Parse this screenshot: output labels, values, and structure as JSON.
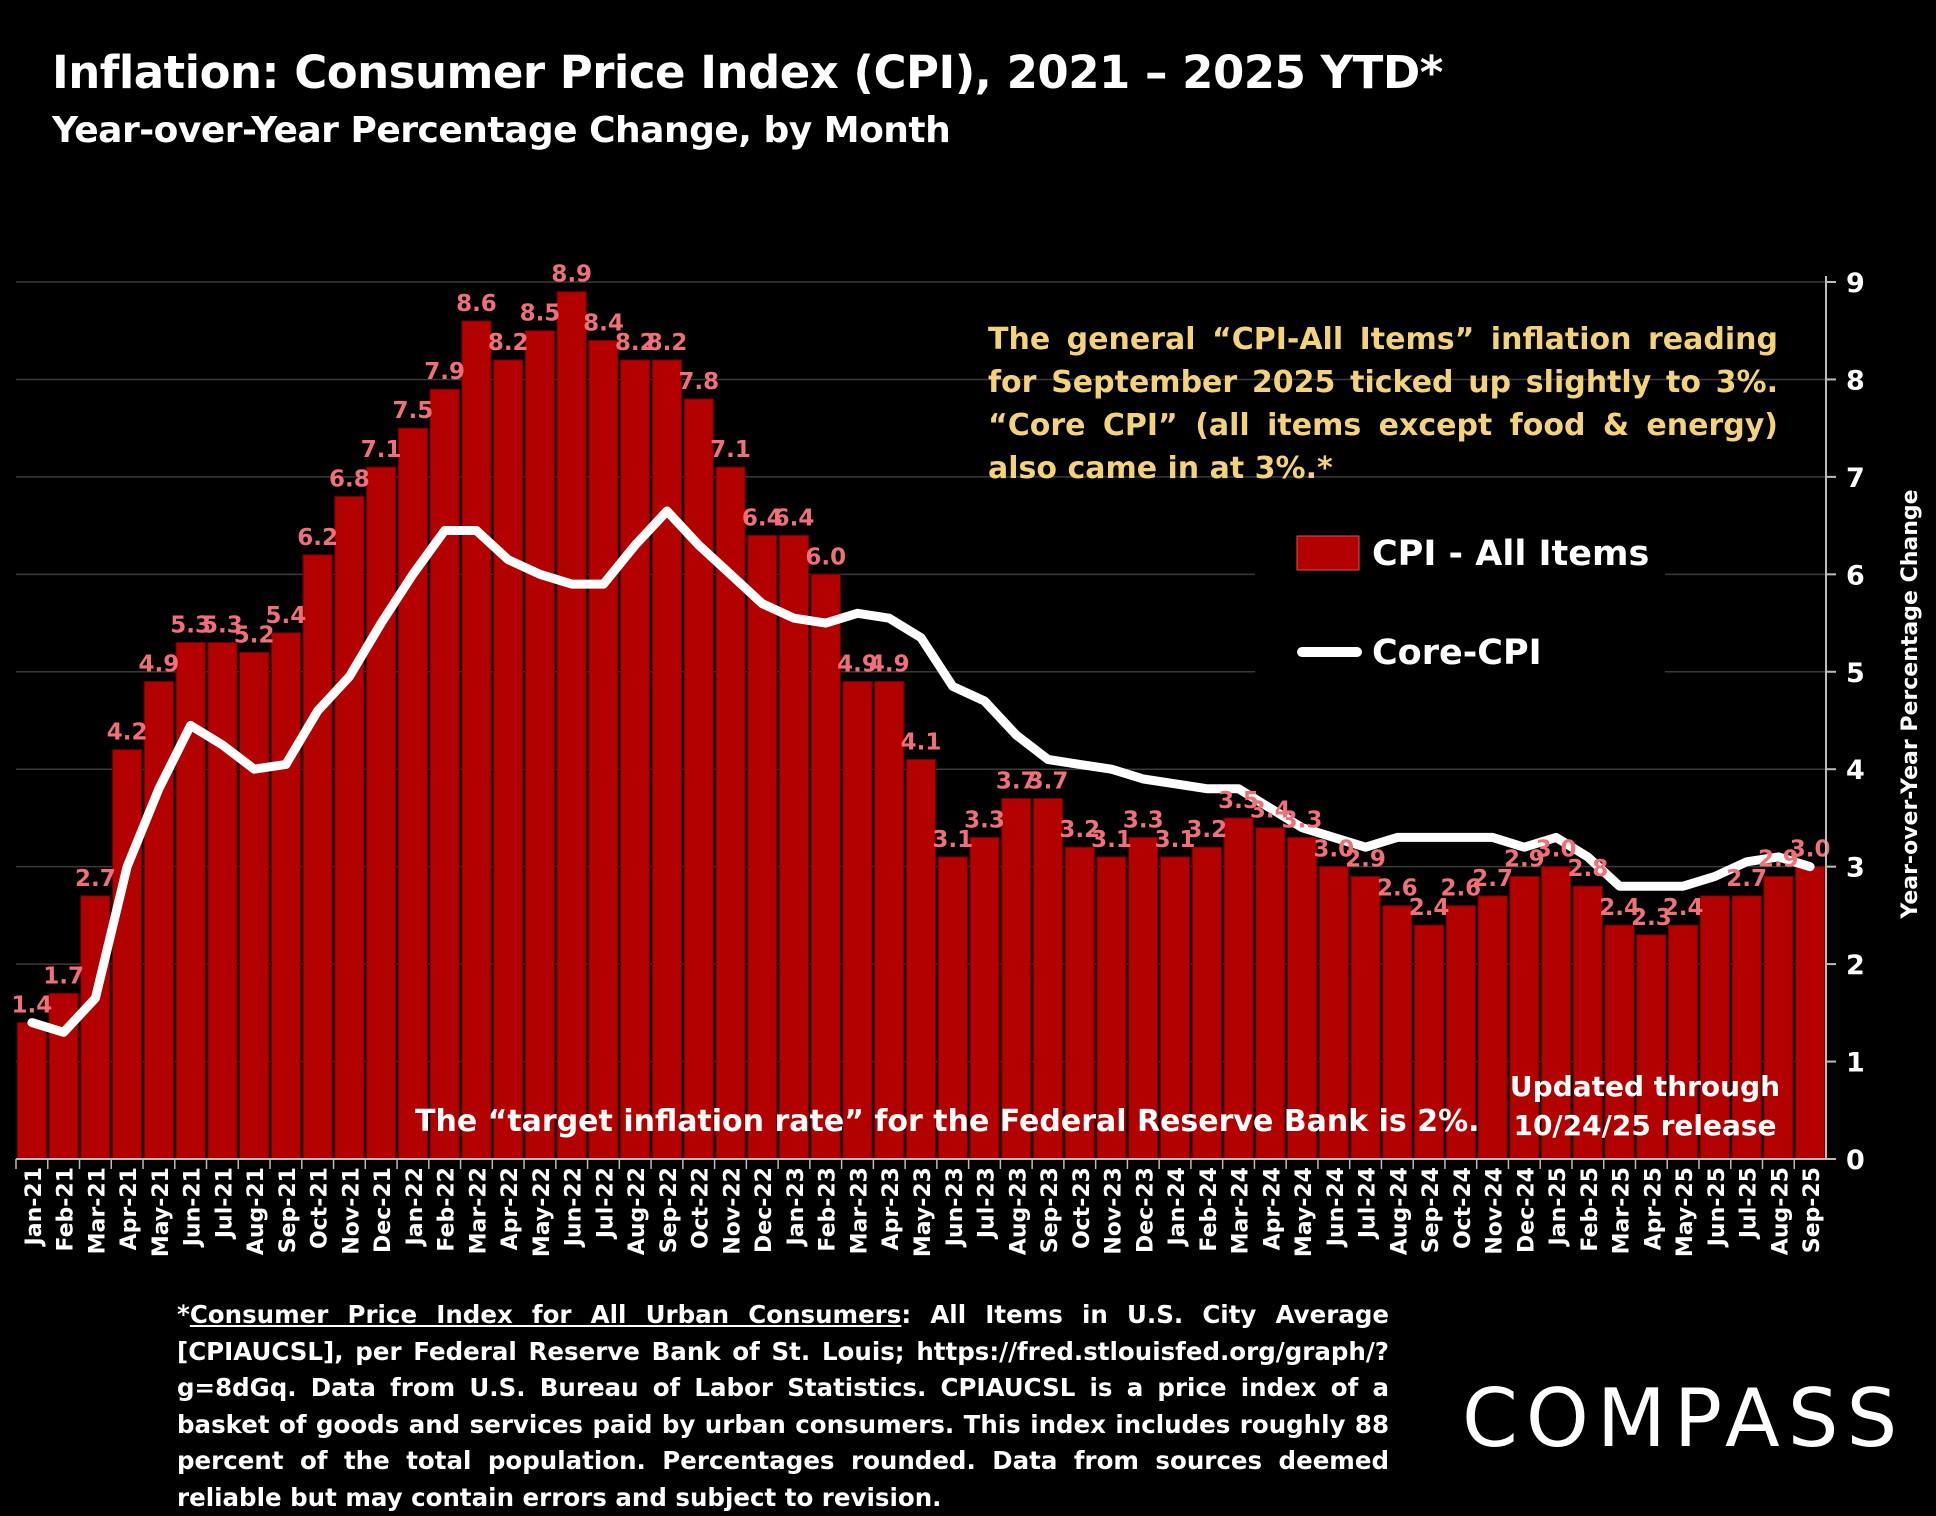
{
  "title": "Inflation: Consumer Price Index (CPI), 2021 – 2025 YTD*",
  "subtitle": "Year-over-Year Percentage Change, by Month",
  "annotation": "The general “CPI-All Items” inflation reading for September 2025 ticked up slightly to 3%. “Core CPI” (all items except food & energy) also came in at 3%.*",
  "target_note": "The “target inflation rate” for the Federal Reserve Bank is 2%.",
  "updated_note": [
    "Updated through",
    "10/24/25 release"
  ],
  "footnote": {
    "prefix": "*",
    "link_text": "Consumer Price Index for All Urban Consumers",
    "body": ": All Items in U.S. City Average [CPIAUCSL], per Federal Reserve Bank of St. Louis; https://fred.stlouisfed.org/graph/?g=8dGq. Data from U.S. Bureau of Labor Statistics. CPIAUCSL is a price index of a basket of goods and services paid by urban consumers. This index includes roughly 88 percent of the total population. Percentages rounded. Data from sources deemed reliable but may contain errors and subject to revision."
  },
  "logo": "COMPASS",
  "colors": {
    "background": "#000000",
    "bar": "#b30000",
    "bar_label": "#f0707a",
    "line": "#ffffff",
    "annotation": "#f2d27a"
  },
  "chart_data": {
    "type": "bar",
    "title": "Inflation: Consumer Price Index (CPI), 2021 – 2025 YTD*",
    "ylabel": "Year-over-Year Percentage Change",
    "xlabel": "",
    "ylim": [
      0,
      9
    ],
    "yticks": [
      0,
      1,
      2,
      3,
      4,
      5,
      6,
      7,
      8,
      9
    ],
    "y_axis_side": "right",
    "grid": true,
    "legend_placement": "right",
    "categories": [
      "Jan-21",
      "Feb-21",
      "Mar-21",
      "Apr-21",
      "May-21",
      "Jun-21",
      "Jul-21",
      "Aug-21",
      "Sep-21",
      "Oct-21",
      "Nov-21",
      "Dec-21",
      "Jan-22",
      "Feb-22",
      "Mar-22",
      "Apr-22",
      "May-22",
      "Jun-22",
      "Jul-22",
      "Aug-22",
      "Sep-22",
      "Oct-22",
      "Nov-22",
      "Dec-22",
      "Jan-23",
      "Feb-23",
      "Mar-23",
      "Apr-23",
      "May-23",
      "Jun-23",
      "Jul-23",
      "Aug-23",
      "Sep-23",
      "Oct-23",
      "Nov-23",
      "Dec-23",
      "Jan-24",
      "Feb-24",
      "Mar-24",
      "Apr-24",
      "May-24",
      "Jun-24",
      "Jul-24",
      "Aug-24",
      "Sep-24",
      "Oct-24",
      "Nov-24",
      "Dec-24",
      "Jan-25",
      "Feb-25",
      "Mar-25",
      "Apr-25",
      "May-25",
      "Jun-25",
      "Jul-25",
      "Aug-25",
      "Sep-25"
    ],
    "series": [
      {
        "name": "CPI - All Items",
        "type": "bar",
        "values": [
          1.4,
          1.7,
          2.7,
          4.2,
          4.9,
          5.3,
          5.3,
          5.2,
          5.4,
          6.2,
          6.8,
          7.1,
          7.5,
          7.9,
          8.6,
          8.2,
          8.5,
          8.9,
          8.4,
          8.2,
          8.2,
          7.8,
          7.1,
          6.4,
          6.4,
          6.0,
          4.9,
          4.9,
          4.1,
          3.1,
          3.3,
          3.7,
          3.7,
          3.2,
          3.1,
          3.3,
          3.1,
          3.2,
          3.5,
          3.4,
          3.3,
          3.0,
          2.9,
          2.6,
          2.4,
          2.6,
          2.7,
          2.9,
          3.0,
          2.8,
          2.4,
          2.3,
          2.4,
          2.7,
          2.7,
          2.9,
          3.0
        ],
        "labels": [
          "1.4",
          "1.7",
          "2.7",
          "4.2",
          "4.9",
          "5.3",
          "5.3",
          "5.2",
          "5.4",
          "6.2",
          "6.8",
          "7.1",
          "7.5",
          "7.9",
          "8.6",
          "8.2",
          "8.5",
          "8.9",
          "8.4",
          "8.2",
          "8.2",
          "7.8",
          "7.1",
          "6.4",
          "6.4",
          "6.0",
          "4.9",
          "4.9",
          "4.1",
          "3.1",
          "3.3",
          "3.7",
          "3.7",
          "3.2",
          "3.1",
          "3.3",
          "3.1",
          "3.2",
          "3.5",
          "3.4",
          "3.3",
          "3.0",
          "2.9",
          "2.6",
          "2.4",
          "2.6",
          "2.7",
          "2.9",
          "3.0",
          "2.8",
          "2.4",
          "2.3",
          "2.4",
          "",
          "2.7",
          "2.9",
          "3.0"
        ]
      },
      {
        "name": "Core-CPI",
        "type": "line",
        "values": [
          1.4,
          1.3,
          1.65,
          3.0,
          3.8,
          4.45,
          4.25,
          4.0,
          4.05,
          4.6,
          4.95,
          5.5,
          6.0,
          6.45,
          6.45,
          6.15,
          6.0,
          5.9,
          5.9,
          6.3,
          6.65,
          6.3,
          6.0,
          5.7,
          5.55,
          5.5,
          5.6,
          5.55,
          5.35,
          4.85,
          4.7,
          4.35,
          4.1,
          4.05,
          4.0,
          3.9,
          3.85,
          3.8,
          3.8,
          3.6,
          3.4,
          3.3,
          3.2,
          3.3,
          3.3,
          3.3,
          3.3,
          3.2,
          3.3,
          3.1,
          2.8,
          2.8,
          2.8,
          2.9,
          3.05,
          3.1,
          3.0
        ]
      }
    ]
  }
}
